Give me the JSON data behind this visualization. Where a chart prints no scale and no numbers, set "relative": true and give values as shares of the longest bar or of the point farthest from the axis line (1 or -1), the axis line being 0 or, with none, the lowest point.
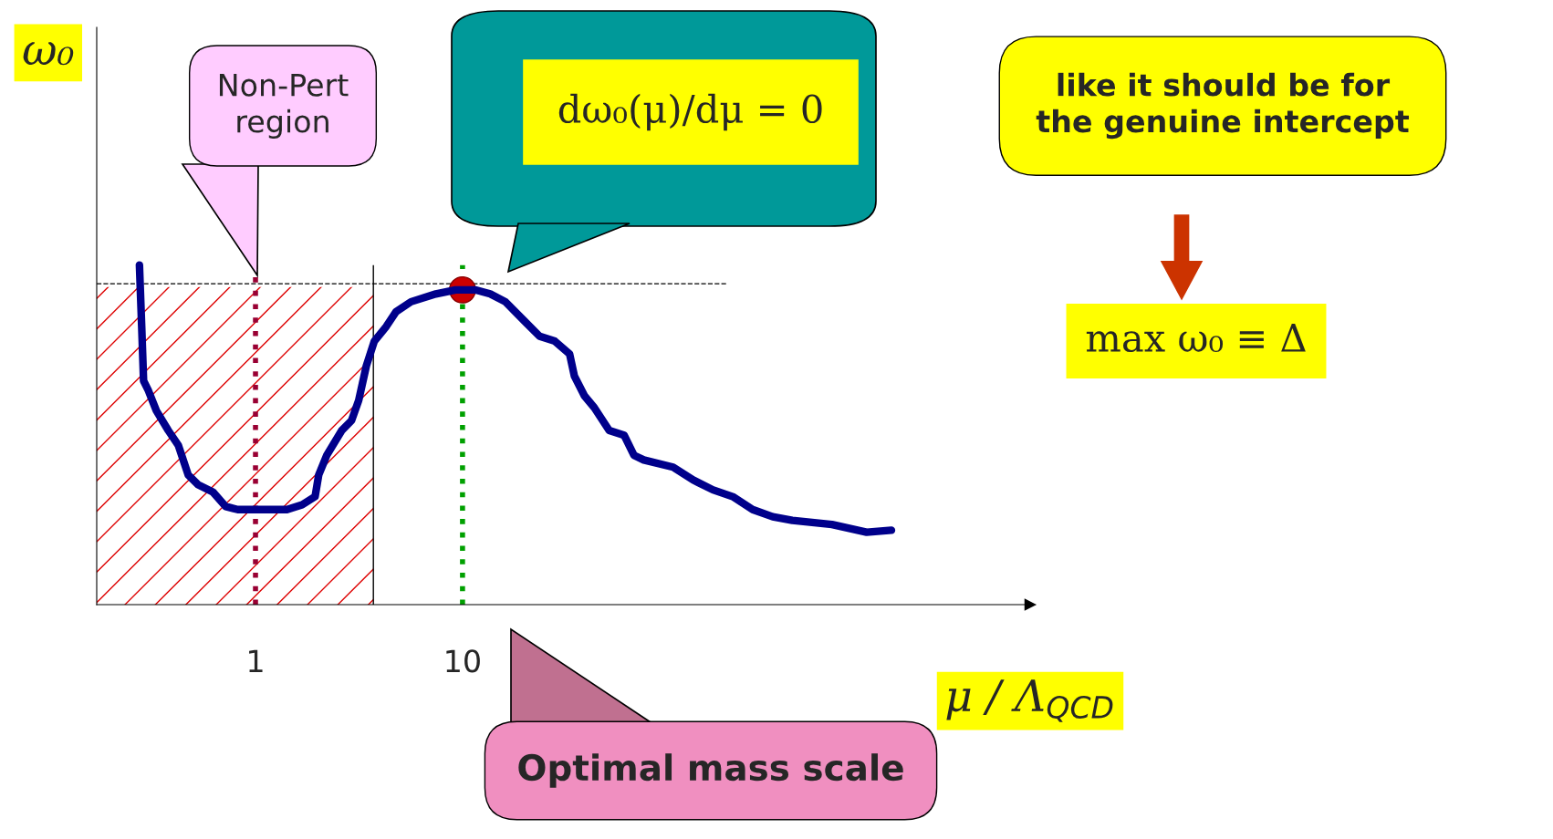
{
  "chart_data": {
    "type": "line",
    "relative": true,
    "xlabel": "μ / Λ$_{QCD}$",
    "ylabel": "ω₀",
    "log": "x",
    "xlim": [
      0.171,
      5520
    ],
    "xticks": [
      1,
      10
    ],
    "grid": false,
    "legend": false,
    "x": [
      0.275,
      0.282,
      0.288,
      0.304,
      0.332,
      0.379,
      0.424,
      0.473,
      0.528,
      0.622,
      0.718,
      0.82,
      1.42,
      1.68,
      1.94,
      2.02,
      2.21,
      2.61,
      2.91,
      3.15,
      3.43,
      3.75,
      4.28,
      4.78,
      5.64,
      7.43,
      9.26,
      11.5,
      13.6,
      16.1,
      20.0,
      23.6,
      27.9,
      32.9,
      34.7,
      38.8,
      43.3,
      51.1,
      60.3,
      67.3,
      75.1,
      104,
      130,
      162,
      202,
      252,
      315,
      392,
      609,
      896,
      1180
    ],
    "series": [
      {
        "color": "#00008b",
        "line_style": "solid",
        "marker": "none",
        "values": [
          1.0,
          0.819,
          0.659,
          0.63,
          0.571,
          0.513,
          0.469,
          0.382,
          0.353,
          0.332,
          0.289,
          0.28,
          0.28,
          0.294,
          0.318,
          0.382,
          0.44,
          0.513,
          0.542,
          0.601,
          0.703,
          0.776,
          0.819,
          0.863,
          0.892,
          0.915,
          0.927,
          0.927,
          0.915,
          0.892,
          0.834,
          0.79,
          0.776,
          0.738,
          0.673,
          0.615,
          0.58,
          0.513,
          0.499,
          0.44,
          0.426,
          0.405,
          0.367,
          0.338,
          0.318,
          0.28,
          0.259,
          0.248,
          0.236,
          0.213,
          0.219
        ]
      },
      {
        "type": "scatter",
        "color": "#cc0000",
        "marker": "circle",
        "x": [
          10
        ],
        "values": [
          0.927
        ]
      }
    ],
    "ref_lines": [
      {
        "axis": "y",
        "value": 0.945,
        "line_style": "dashed",
        "color": "#000000"
      },
      {
        "axis": "x",
        "value": 1,
        "line_style": "dotted",
        "color": "#990033"
      },
      {
        "axis": "x",
        "value": 10,
        "line_style": "dotted",
        "color": "#00a000"
      },
      {
        "axis": "x",
        "value": 3.71,
        "line_style": "solid",
        "color": "#000000"
      }
    ],
    "bands": [
      {
        "axis": "x",
        "from": 0.171,
        "to": 3.71,
        "color": "#dd0000"
      }
    ],
    "annotations": [
      "Non-Pert\nregion",
      "dω₀(μ)/dμ = 0",
      "like it should be for\nthe genuine intercept",
      "max ω₀ ≡ Δ",
      "Optimal mass scale"
    ]
  }
}
